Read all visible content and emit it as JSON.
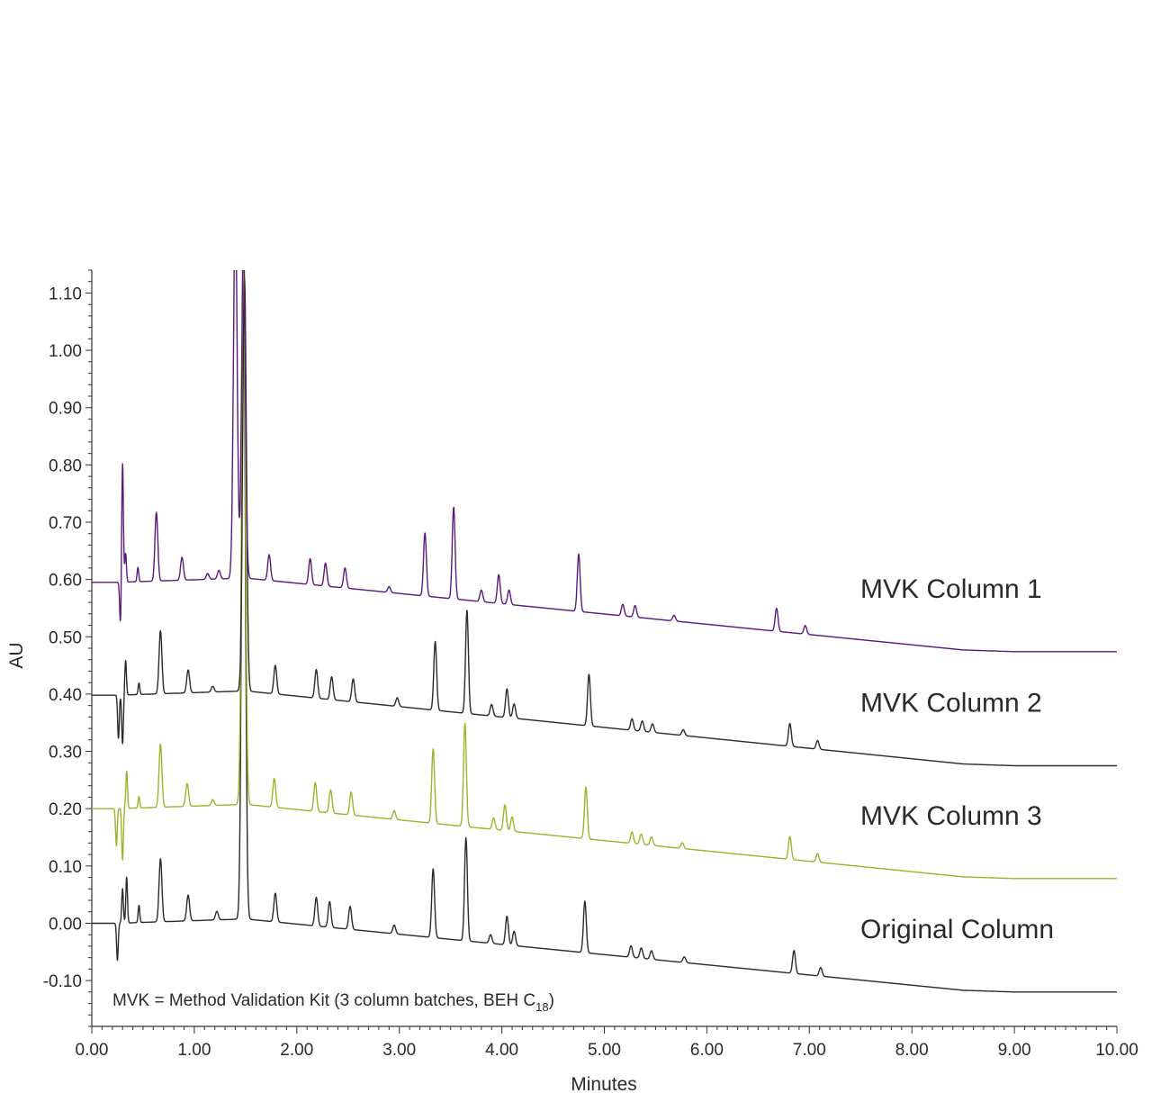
{
  "chart_data": {
    "type": "line",
    "xlabel": "Minutes",
    "ylabel": "AU",
    "xlim": [
      0,
      10
    ],
    "ylim": [
      -0.18,
      1.14
    ],
    "x_ticks": [
      "0.00",
      "1.00",
      "2.00",
      "3.00",
      "4.00",
      "5.00",
      "6.00",
      "7.00",
      "8.00",
      "9.00",
      "10.00"
    ],
    "y_ticks": [
      "-0.10",
      "0.00",
      "0.10",
      "0.20",
      "0.30",
      "0.40",
      "0.50",
      "0.60",
      "0.70",
      "0.80",
      "0.90",
      "1.00",
      "1.10"
    ],
    "grid": false,
    "annotation": {
      "text": "MVK = Method Validation Kit (3 column batches, BEH C",
      "subscript": "18",
      "suffix": ")"
    },
    "series": [
      {
        "name": "MVK Column 1",
        "color": "#5b1a7a",
        "baseline_start": 0.595,
        "baseline_end": 0.474,
        "peaks": [
          [
            0.28,
            -0.075
          ],
          [
            0.3,
            0.21
          ],
          [
            0.33,
            0.05
          ],
          [
            0.45,
            0.025
          ],
          [
            0.63,
            0.12
          ],
          [
            0.88,
            0.04
          ],
          [
            1.13,
            0.01
          ],
          [
            1.24,
            0.015
          ],
          [
            1.4,
            0.65
          ],
          [
            1.48,
            0.6
          ],
          [
            1.73,
            0.045
          ],
          [
            2.13,
            0.045
          ],
          [
            2.28,
            0.04
          ],
          [
            2.47,
            0.035
          ],
          [
            2.9,
            0.01
          ],
          [
            3.25,
            0.11
          ],
          [
            3.53,
            0.16
          ],
          [
            3.8,
            0.02
          ],
          [
            3.97,
            0.05
          ],
          [
            4.07,
            0.025
          ],
          [
            4.75,
            0.1
          ],
          [
            5.18,
            0.02
          ],
          [
            5.3,
            0.02
          ],
          [
            5.68,
            0.01
          ],
          [
            6.68,
            0.04
          ],
          [
            6.96,
            0.015
          ]
        ]
      },
      {
        "name": "MVK Column 2",
        "color": "#2b2b2b",
        "baseline_start": 0.398,
        "baseline_end": 0.275,
        "peaks": [
          [
            0.26,
            -0.075
          ],
          [
            0.3,
            -0.085
          ],
          [
            0.33,
            0.06
          ],
          [
            0.46,
            0.02
          ],
          [
            0.67,
            0.11
          ],
          [
            0.94,
            0.04
          ],
          [
            1.18,
            0.01
          ],
          [
            1.49,
            0.72
          ],
          [
            1.79,
            0.05
          ],
          [
            2.19,
            0.05
          ],
          [
            2.34,
            0.04
          ],
          [
            2.55,
            0.04
          ],
          [
            2.98,
            0.015
          ],
          [
            3.35,
            0.12
          ],
          [
            3.66,
            0.18
          ],
          [
            3.9,
            0.02
          ],
          [
            4.05,
            0.05
          ],
          [
            4.12,
            0.025
          ],
          [
            4.85,
            0.09
          ],
          [
            5.27,
            0.02
          ],
          [
            5.37,
            0.018
          ],
          [
            5.47,
            0.015
          ],
          [
            5.77,
            0.01
          ],
          [
            6.81,
            0.04
          ],
          [
            7.08,
            0.015
          ]
        ]
      },
      {
        "name": "MVK Column 3",
        "color": "#9bb52b",
        "baseline_start": 0.2,
        "baseline_end": 0.078,
        "peaks": [
          [
            0.24,
            -0.065
          ],
          [
            0.3,
            -0.09
          ],
          [
            0.34,
            0.065
          ],
          [
            0.46,
            0.02
          ],
          [
            0.67,
            0.11
          ],
          [
            0.93,
            0.04
          ],
          [
            1.18,
            0.01
          ],
          [
            1.48,
            0.95
          ],
          [
            1.78,
            0.05
          ],
          [
            2.18,
            0.05
          ],
          [
            2.33,
            0.04
          ],
          [
            2.53,
            0.04
          ],
          [
            2.95,
            0.015
          ],
          [
            3.33,
            0.13
          ],
          [
            3.64,
            0.18
          ],
          [
            3.92,
            0.02
          ],
          [
            4.03,
            0.045
          ],
          [
            4.1,
            0.025
          ],
          [
            4.82,
            0.09
          ],
          [
            5.27,
            0.02
          ],
          [
            5.36,
            0.018
          ],
          [
            5.46,
            0.015
          ],
          [
            5.76,
            0.01
          ],
          [
            6.81,
            0.04
          ],
          [
            7.08,
            0.015
          ]
        ]
      },
      {
        "name": "Original Column",
        "color": "#2b2b2b",
        "baseline_start": 0.0,
        "baseline_end": -0.12,
        "peaks": [
          [
            0.25,
            -0.065
          ],
          [
            0.3,
            0.06
          ],
          [
            0.34,
            0.08
          ],
          [
            0.46,
            0.03
          ],
          [
            0.67,
            0.11
          ],
          [
            0.94,
            0.045
          ],
          [
            1.22,
            0.015
          ],
          [
            1.48,
            1.1
          ],
          [
            1.79,
            0.05
          ],
          [
            2.19,
            0.05
          ],
          [
            2.32,
            0.045
          ],
          [
            2.52,
            0.04
          ],
          [
            2.95,
            0.015
          ],
          [
            3.33,
            0.12
          ],
          [
            3.65,
            0.18
          ],
          [
            3.89,
            0.015
          ],
          [
            4.05,
            0.05
          ],
          [
            4.12,
            0.025
          ],
          [
            4.81,
            0.09
          ],
          [
            5.26,
            0.02
          ],
          [
            5.36,
            0.018
          ],
          [
            5.46,
            0.015
          ],
          [
            5.78,
            0.01
          ],
          [
            6.85,
            0.04
          ],
          [
            7.11,
            0.015
          ]
        ]
      }
    ]
  }
}
